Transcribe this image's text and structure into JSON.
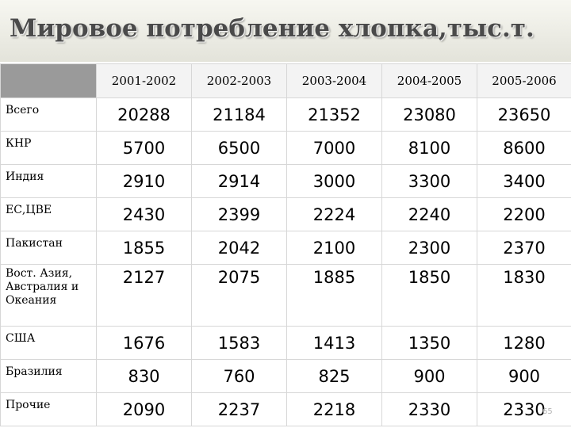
{
  "title": "Мировое потребление хлопка,тыс.т.",
  "years": [
    "2001-2002",
    "2002-2003",
    "2003-2004",
    "2004-2005",
    "2005-2006"
  ],
  "rows": [
    {
      "label": "Всего",
      "values": [
        "20288",
        "21184",
        "21352",
        "23080",
        "23650"
      ]
    },
    {
      "label": "КНР",
      "values": [
        "5700",
        "6500",
        "7000",
        "8100",
        "8600"
      ]
    },
    {
      "label": "Индия",
      "values": [
        "2910",
        "2914",
        "3000",
        "3300",
        "3400"
      ]
    },
    {
      "label": "ЕС,ЦВЕ",
      "values": [
        "2430",
        "2399",
        "2224",
        "2240",
        "2200"
      ]
    },
    {
      "label": "Пакистан",
      "values": [
        "1855",
        "2042",
        "2100",
        "2300",
        "2370"
      ]
    },
    {
      "label": "Вост. Азия, Австралия и Океания",
      "values": [
        "2127",
        "2075",
        "1885",
        "1850",
        "1830"
      ]
    },
    {
      "label": "США",
      "values": [
        "1676",
        "1583",
        "1413",
        "1350",
        "1280"
      ]
    },
    {
      "label": "Бразилия",
      "values": [
        "830",
        "760",
        "825",
        "900",
        "900"
      ]
    },
    {
      "label": "Прочие",
      "values": [
        "2090",
        "2237",
        "2218",
        "2330",
        "2330"
      ]
    }
  ],
  "page_number": "65"
}
